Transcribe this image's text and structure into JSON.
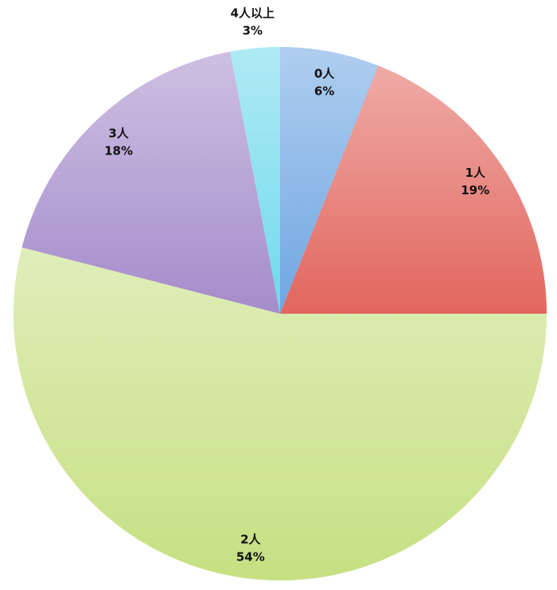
{
  "chart_data": {
    "type": "pie",
    "categories": [
      "0人",
      "1人",
      "2人",
      "3人",
      "4人以上"
    ],
    "values": [
      6,
      19,
      54,
      18,
      3
    ],
    "value_labels": [
      "6%",
      "19%",
      "54%",
      "18%",
      "3%"
    ],
    "colors": [
      "#6fa6e2",
      "#e2665e",
      "#c6e082",
      "#a58ccb",
      "#6fd9ec"
    ]
  }
}
